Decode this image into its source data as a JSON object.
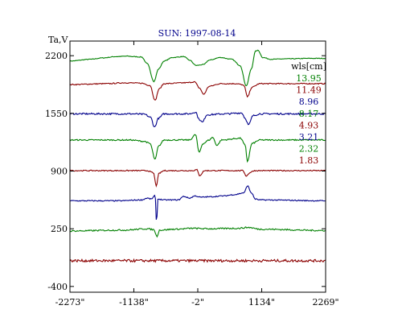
{
  "chart_data": {
    "type": "line",
    "title": "SUN: 1997-08-14",
    "ylabel": "Ta,V",
    "xlabel": "",
    "x_unit_mark": "\"",
    "xlim": [
      -2273,
      2269
    ],
    "ylim": [
      -465,
      2365
    ],
    "x_ticks": [
      "-2273\"",
      "-1138\"",
      "-2\"",
      "1134\"",
      "2269\""
    ],
    "x_tick_values": [
      -2273,
      -1138,
      -2,
      1134,
      2269
    ],
    "y_ticks": [
      "2200",
      "1550",
      "900",
      "250",
      "-400"
    ],
    "y_tick_values": [
      2200,
      1550,
      900,
      250,
      -400
    ],
    "legend_title": "wls[cm]",
    "legend_position": "right",
    "grid": false,
    "series": [
      {
        "name": "13.95",
        "color": "#008000",
        "baseline": 2170,
        "features": [
          [
            -2273,
            -30
          ],
          [
            -1900,
            -10
          ],
          [
            -1700,
            5
          ],
          [
            -1450,
            20
          ],
          [
            -1250,
            25
          ],
          [
            -1150,
            20
          ],
          [
            -1000,
            15
          ],
          [
            -900,
            -60
          ],
          [
            -780,
            -260
          ],
          [
            -700,
            -120
          ],
          [
            -600,
            -30
          ],
          [
            -450,
            10
          ],
          [
            -250,
            20
          ],
          [
            -150,
            -20
          ],
          [
            -30,
            -80
          ],
          [
            100,
            -70
          ],
          [
            200,
            -20
          ],
          [
            400,
            10
          ],
          [
            600,
            -10
          ],
          [
            750,
            -80
          ],
          [
            860,
            -310
          ],
          [
            950,
            -120
          ],
          [
            1020,
            80
          ],
          [
            1070,
            90
          ],
          [
            1150,
            10
          ],
          [
            1300,
            -10
          ],
          [
            1600,
            -5
          ],
          [
            2000,
            0
          ],
          [
            2269,
            0
          ]
        ],
        "noise": 4
      },
      {
        "name": "11.49",
        "color": "#8b0000",
        "baseline": 1885,
        "features": [
          [
            -2273,
            -10
          ],
          [
            -1600,
            0
          ],
          [
            -1300,
            10
          ],
          [
            -1000,
            5
          ],
          [
            -850,
            -20
          ],
          [
            -760,
            -190
          ],
          [
            -690,
            -60
          ],
          [
            -600,
            0
          ],
          [
            -200,
            10
          ],
          [
            -60,
            20
          ],
          [
            30,
            -50
          ],
          [
            100,
            -120
          ],
          [
            200,
            -30
          ],
          [
            400,
            0
          ],
          [
            700,
            0
          ],
          [
            820,
            -20
          ],
          [
            880,
            -150
          ],
          [
            960,
            -40
          ],
          [
            1100,
            0
          ],
          [
            2269,
            0
          ]
        ],
        "noise": 6
      },
      {
        "name": "8.96",
        "color": "#00008b",
        "baseline": 1545,
        "features": [
          [
            -2273,
            0
          ],
          [
            -1200,
            0
          ],
          [
            -950,
            -5
          ],
          [
            -840,
            -40
          ],
          [
            -770,
            -150
          ],
          [
            -700,
            -50
          ],
          [
            -600,
            0
          ],
          [
            -150,
            0
          ],
          [
            -40,
            20
          ],
          [
            20,
            -60
          ],
          [
            80,
            -95
          ],
          [
            160,
            -10
          ],
          [
            500,
            0
          ],
          [
            780,
            10
          ],
          [
            840,
            -50
          ],
          [
            900,
            -125
          ],
          [
            980,
            -20
          ],
          [
            1100,
            0
          ],
          [
            2269,
            0
          ]
        ],
        "noise": 9
      },
      {
        "name": "8.17",
        "color": "#008000",
        "baseline": 1250,
        "features": [
          [
            -2273,
            0
          ],
          [
            -1200,
            0
          ],
          [
            -950,
            -15
          ],
          [
            -850,
            -40
          ],
          [
            -760,
            -220
          ],
          [
            -700,
            -70
          ],
          [
            -600,
            0
          ],
          [
            -150,
            0
          ],
          [
            -40,
            60
          ],
          [
            20,
            -140
          ],
          [
            90,
            -40
          ],
          [
            200,
            0
          ],
          [
            260,
            30
          ],
          [
            340,
            -60
          ],
          [
            420,
            0
          ],
          [
            760,
            20
          ],
          [
            840,
            -60
          ],
          [
            880,
            -240
          ],
          [
            960,
            -40
          ],
          [
            1100,
            0
          ],
          [
            2269,
            0
          ]
        ],
        "noise": 7
      },
      {
        "name": "4.93",
        "color": "#8b0000",
        "baseline": 905,
        "features": [
          [
            -2273,
            0
          ],
          [
            -900,
            0
          ],
          [
            -790,
            -25
          ],
          [
            -740,
            -170
          ],
          [
            -690,
            -30
          ],
          [
            -600,
            0
          ],
          [
            -100,
            0
          ],
          [
            -20,
            10
          ],
          [
            30,
            -55
          ],
          [
            120,
            0
          ],
          [
            800,
            0
          ],
          [
            860,
            -60
          ],
          [
            930,
            -20
          ],
          [
            1000,
            0
          ],
          [
            2269,
            0
          ]
        ],
        "noise": 6
      },
      {
        "name": "3.21",
        "color": "#00008b",
        "baseline": 565,
        "features": [
          [
            -2273,
            0
          ],
          [
            -1400,
            0
          ],
          [
            -1000,
            10
          ],
          [
            -900,
            30
          ],
          [
            -830,
            20
          ],
          [
            -760,
            60
          ],
          [
            -735,
            -250
          ],
          [
            -710,
            20
          ],
          [
            -600,
            10
          ],
          [
            -350,
            10
          ],
          [
            -250,
            50
          ],
          [
            -150,
            30
          ],
          [
            -50,
            55
          ],
          [
            50,
            40
          ],
          [
            200,
            45
          ],
          [
            450,
            55
          ],
          [
            650,
            70
          ],
          [
            820,
            90
          ],
          [
            880,
            170
          ],
          [
            950,
            90
          ],
          [
            1020,
            20
          ],
          [
            1100,
            10
          ],
          [
            2269,
            0
          ]
        ],
        "noise": 6
      },
      {
        "name": "2.32",
        "color": "#008000",
        "baseline": 225,
        "features": [
          [
            -2273,
            0
          ],
          [
            -1300,
            10
          ],
          [
            -900,
            25
          ],
          [
            -780,
            15
          ],
          [
            -730,
            -60
          ],
          [
            -680,
            10
          ],
          [
            -400,
            20
          ],
          [
            -100,
            30
          ],
          [
            200,
            25
          ],
          [
            700,
            30
          ],
          [
            900,
            40
          ],
          [
            1100,
            20
          ],
          [
            2269,
            5
          ]
        ],
        "noise": 8
      },
      {
        "name": "1.83",
        "color": "#8b0000",
        "baseline": -110,
        "features": [
          [
            -2273,
            0
          ],
          [
            0,
            0
          ],
          [
            2269,
            0
          ]
        ],
        "noise": 14
      }
    ]
  }
}
